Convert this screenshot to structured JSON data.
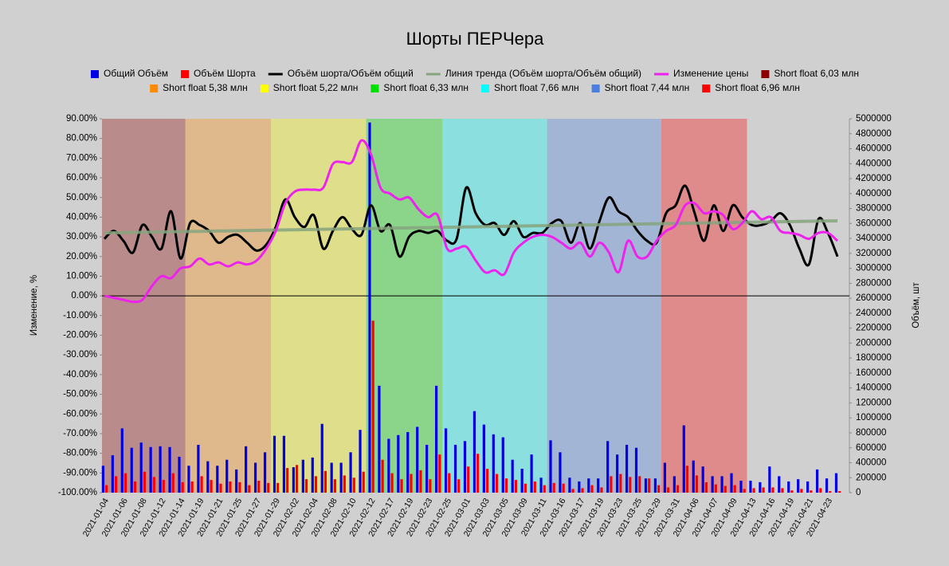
{
  "chart_data": {
    "type": "combo",
    "title": "Шорты ПЕРЧера",
    "ylabel": "Изменение, %",
    "y2label": "Объём, шт",
    "categories": [
      "2021-01-04",
      null,
      "2021-01-06",
      null,
      "2021-01-08",
      null,
      "2021-01-12",
      null,
      "2021-01-14",
      null,
      "2021-01-19",
      null,
      "2021-01-21",
      null,
      "2021-01-25",
      null,
      "2021-01-27",
      null,
      "2021-01-29",
      null,
      "2021-02-02",
      null,
      "2021-02-04",
      null,
      "2021-02-08",
      null,
      "2021-02-10",
      null,
      "2021-02-12",
      null,
      "2021-02-17",
      null,
      "2021-02-19",
      null,
      "2021-02-23",
      null,
      "2021-02-25",
      null,
      "2021-03-01",
      null,
      "2021-03-03",
      null,
      "2021-03-05",
      null,
      "2021-03-09",
      null,
      "2021-03-11",
      null,
      "2021-03-16",
      null,
      "2021-03-17",
      null,
      "2021-03-19",
      null,
      "2021-03-23",
      null,
      "2021-03-25",
      null,
      "2021-03-29",
      null,
      "2021-03-31",
      null,
      "2021-04-06",
      null,
      "2021-04-07",
      null,
      "2021-04-09",
      null,
      "2021-04-13",
      null,
      "2021-04-16",
      null,
      "2021-04-19",
      null,
      "2021-04-21",
      null,
      "2021-04-23",
      null
    ],
    "series": [
      {
        "name": "Общий Объём",
        "type": "bar",
        "axis": "y2",
        "color": "#0000e6",
        "values": [
          360000,
          500000,
          860000,
          600000,
          670000,
          610000,
          620000,
          610000,
          480000,
          360000,
          640000,
          420000,
          360000,
          440000,
          310000,
          620000,
          400000,
          540000,
          760000,
          760000,
          340000,
          440000,
          470000,
          920000,
          400000,
          400000,
          540000,
          840000,
          4950000,
          1430000,
          720000,
          770000,
          810000,
          880000,
          640000,
          1430000,
          860000,
          640000,
          690000,
          1090000,
          910000,
          780000,
          740000,
          440000,
          320000,
          510000,
          200000,
          700000,
          540000,
          200000,
          150000,
          190000,
          190000,
          690000,
          510000,
          640000,
          600000,
          190000,
          190000,
          400000,
          220000,
          900000,
          430000,
          350000,
          220000,
          220000,
          260000,
          160000,
          160000,
          140000,
          350000,
          220000,
          150000,
          180000,
          150000,
          310000,
          190000,
          260000
        ]
      },
      {
        "name": "Объём Шорта",
        "type": "bar",
        "axis": "y2",
        "color": "#ff0000",
        "values": [
          100000,
          220000,
          260000,
          150000,
          280000,
          210000,
          170000,
          260000,
          140000,
          150000,
          220000,
          170000,
          120000,
          150000,
          140000,
          100000,
          160000,
          130000,
          130000,
          330000,
          370000,
          180000,
          220000,
          290000,
          180000,
          230000,
          200000,
          280000,
          2300000,
          440000,
          260000,
          180000,
          250000,
          300000,
          180000,
          510000,
          260000,
          180000,
          350000,
          520000,
          320000,
          250000,
          190000,
          170000,
          120000,
          150000,
          100000,
          130000,
          120000,
          50000,
          60000,
          100000,
          70000,
          220000,
          250000,
          210000,
          220000,
          190000,
          100000,
          70000,
          100000,
          360000,
          230000,
          140000,
          110000,
          90000,
          100000,
          50000,
          60000,
          70000,
          70000,
          60000,
          30000,
          50000,
          30000,
          60000,
          20000,
          20000
        ]
      },
      {
        "name": "Объём шорта/Объём общий",
        "type": "line",
        "color": "#000000",
        "values": [
          29,
          33,
          28,
          22,
          36,
          30,
          24,
          43,
          19,
          37,
          36,
          33,
          27,
          30,
          31,
          27,
          23,
          26,
          35,
          49,
          40,
          35,
          41,
          24,
          33,
          40,
          34,
          31,
          46,
          33,
          36,
          20,
          30,
          33,
          32,
          33,
          28,
          29,
          55,
          42,
          36,
          37,
          31,
          38,
          30,
          32,
          32,
          37,
          38,
          27,
          37,
          24,
          38,
          50,
          43,
          40,
          33,
          28,
          27,
          42,
          46,
          56,
          42,
          28,
          46,
          33,
          46,
          40,
          36,
          36,
          38,
          42,
          36,
          24,
          16,
          39,
          32,
          20
        ]
      },
      {
        "name": "Линия тренда (Объём шорта/Объём общий)",
        "type": "line",
        "color": "#86a47e",
        "values": [
          32,
          32.08,
          32.16,
          32.24,
          32.32,
          32.4,
          32.48,
          32.56,
          32.64,
          32.72,
          32.8,
          32.88,
          32.96,
          33.04,
          33.12,
          33.2,
          33.28,
          33.36,
          33.44,
          33.52,
          33.6,
          33.68,
          33.76,
          33.84,
          33.92,
          34,
          34.08,
          34.16,
          34.24,
          34.32,
          34.4,
          34.48,
          34.56,
          34.64,
          34.72,
          34.8,
          34.88,
          34.96,
          35.04,
          35.12,
          35.2,
          35.28,
          35.36,
          35.44,
          35.52,
          35.6,
          35.68,
          35.76,
          35.84,
          35.92,
          36,
          36.08,
          36.16,
          36.24,
          36.32,
          36.4,
          36.48,
          36.56,
          36.64,
          36.72,
          36.8,
          36.88,
          36.96,
          37.04,
          37.12,
          37.2,
          37.28,
          37.36,
          37.44,
          37.52,
          37.6,
          37.68,
          37.76,
          37.84,
          37.92,
          38,
          38.08,
          38.16
        ]
      },
      {
        "name": "Изменение цены",
        "type": "line",
        "color": "#ee22ee",
        "values": [
          0,
          -1,
          -2,
          -3,
          -2,
          5,
          10,
          9,
          14,
          15,
          19,
          16,
          17,
          15,
          17,
          16,
          18,
          24,
          33,
          47,
          53,
          54,
          54,
          55,
          67,
          68,
          68,
          79,
          72,
          55,
          52,
          49,
          50,
          44,
          40,
          41,
          24,
          24,
          25,
          18,
          12,
          13,
          11,
          22,
          27,
          30,
          31,
          30,
          27,
          24,
          27,
          20,
          27,
          22,
          12,
          28,
          20,
          20,
          28,
          33,
          36,
          46,
          47,
          42,
          43,
          41,
          34,
          37,
          43,
          39,
          40,
          33,
          32,
          31,
          29,
          32,
          32,
          28
        ]
      }
    ],
    "bands": [
      {
        "name": "Short float 6,03 млн",
        "color": "#8b0000",
        "from": 0,
        "to": 8
      },
      {
        "name": "Short float 5,38 млн",
        "color": "#ff8c00",
        "from": 9,
        "to": 17
      },
      {
        "name": "Short float 5,22 млн",
        "color": "#ffff00",
        "from": 18,
        "to": 27
      },
      {
        "name": "Short float 6,33 млн",
        "color": "#00e000",
        "from": 28,
        "to": 35
      },
      {
        "name": "Short float 7,66 млн",
        "color": "#00ffff",
        "from": 36,
        "to": 46
      },
      {
        "name": "Short float 7,44 млн",
        "color": "#4a7ee0",
        "from": 47,
        "to": 58
      },
      {
        "name": "Short float 6,96 млн",
        "color": "#ff0000",
        "from": 59,
        "to": 67
      }
    ],
    "ylim": [
      -100,
      90
    ],
    "yticks": [
      {
        "value": -100,
        "label": "-100.00%"
      },
      {
        "value": -90,
        "label": "-90.00%"
      },
      {
        "value": -80,
        "label": "-80.00%"
      },
      {
        "value": -70,
        "label": "-70.00%"
      },
      {
        "value": -60,
        "label": "-60.00%"
      },
      {
        "value": -50,
        "label": "-50.00%"
      },
      {
        "value": -40,
        "label": "-40.00%"
      },
      {
        "value": -30,
        "label": "-30.00%"
      },
      {
        "value": -20,
        "label": "-20.00%"
      },
      {
        "value": -10,
        "label": "-10.00%"
      },
      {
        "value": 0,
        "label": "0.00%"
      },
      {
        "value": 10,
        "label": "10.00%"
      },
      {
        "value": 20,
        "label": "20.00%"
      },
      {
        "value": 30,
        "label": "30.00%"
      },
      {
        "value": 40,
        "label": "40.00%"
      },
      {
        "value": 50,
        "label": "50.00%"
      },
      {
        "value": 60,
        "label": "60.00%"
      },
      {
        "value": 70,
        "label": "70.00%"
      },
      {
        "value": 80,
        "label": "80.00%"
      },
      {
        "value": 90,
        "label": "90.00%"
      }
    ],
    "y2lim": [
      0,
      5000000
    ],
    "y2ticks": [
      0,
      200000,
      400000,
      600000,
      800000,
      1000000,
      1200000,
      1400000,
      1600000,
      1800000,
      2000000,
      2200000,
      2400000,
      2600000,
      2800000,
      3000000,
      3200000,
      3400000,
      3600000,
      3800000,
      4000000,
      4200000,
      4400000,
      4600000,
      4800000,
      5000000
    ],
    "grid": false
  }
}
